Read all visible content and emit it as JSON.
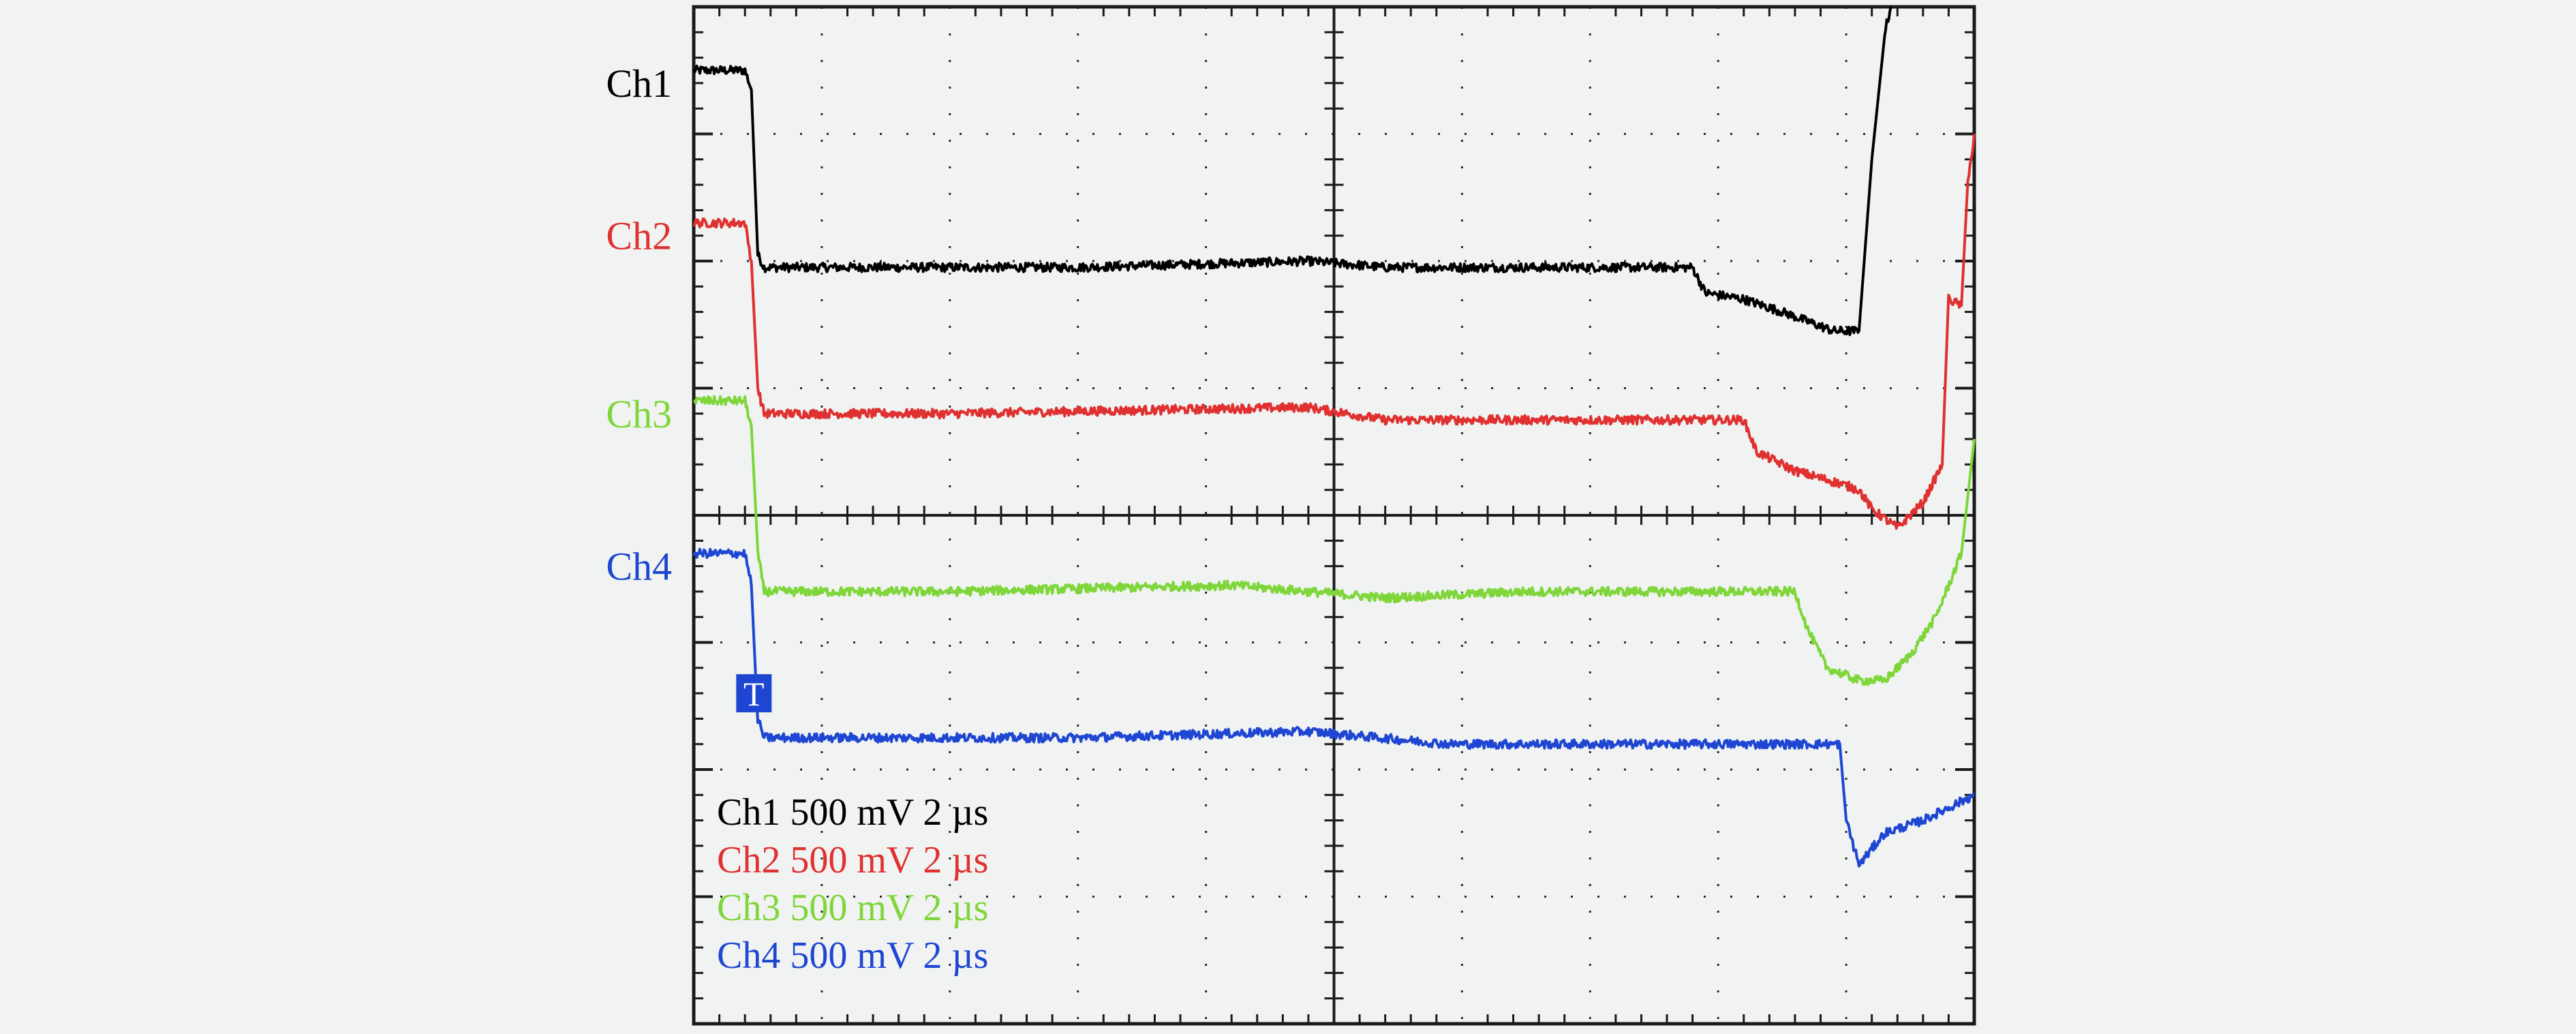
{
  "chart_data": {
    "type": "line",
    "grid": true,
    "grid_divisions": {
      "x": 10,
      "y": 8
    },
    "x_unit": "div",
    "y_unit": "div",
    "xlim": [
      0,
      10
    ],
    "ylim": [
      -4,
      4
    ],
    "series": [
      {
        "name": "Ch1",
        "color": "#000000",
        "points": [
          [
            0,
            3.5
          ],
          [
            0.4,
            3.5
          ],
          [
            0.45,
            3.35
          ],
          [
            0.5,
            2.05
          ],
          [
            0.55,
            1.95
          ],
          [
            1,
            1.95
          ],
          [
            3,
            1.95
          ],
          [
            4.8,
            2.0
          ],
          [
            5.4,
            1.95
          ],
          [
            6.5,
            1.95
          ],
          [
            7.8,
            1.95
          ],
          [
            7.9,
            1.75
          ],
          [
            8.2,
            1.7
          ],
          [
            8.5,
            1.6
          ],
          [
            8.9,
            1.45
          ],
          [
            9.1,
            1.45
          ],
          [
            9.2,
            2.8
          ],
          [
            9.3,
            3.8
          ],
          [
            9.35,
            4.0
          ]
        ]
      },
      {
        "name": "Ch2",
        "color": "#e03030",
        "points": [
          [
            0,
            2.3
          ],
          [
            0.4,
            2.3
          ],
          [
            0.45,
            2.0
          ],
          [
            0.5,
            1.0
          ],
          [
            0.55,
            0.8
          ],
          [
            1,
            0.8
          ],
          [
            2,
            0.8
          ],
          [
            4.8,
            0.85
          ],
          [
            5.4,
            0.75
          ],
          [
            6.5,
            0.75
          ],
          [
            8.2,
            0.75
          ],
          [
            8.3,
            0.5
          ],
          [
            8.6,
            0.35
          ],
          [
            8.95,
            0.25
          ],
          [
            9.1,
            0.2
          ],
          [
            9.2,
            0.05
          ],
          [
            9.4,
            -0.1
          ],
          [
            9.6,
            0.1
          ],
          [
            9.75,
            0.4
          ],
          [
            9.8,
            1.7
          ],
          [
            9.9,
            1.65
          ],
          [
            9.95,
            2.6
          ],
          [
            10,
            3.0
          ]
        ]
      },
      {
        "name": "Ch3",
        "color": "#7fd63a",
        "points": [
          [
            0,
            0.9
          ],
          [
            0.4,
            0.9
          ],
          [
            0.45,
            0.7
          ],
          [
            0.5,
            -0.3
          ],
          [
            0.55,
            -0.6
          ],
          [
            1,
            -0.6
          ],
          [
            2,
            -0.6
          ],
          [
            4.2,
            -0.55
          ],
          [
            5.4,
            -0.65
          ],
          [
            6.5,
            -0.6
          ],
          [
            8.6,
            -0.6
          ],
          [
            8.7,
            -0.9
          ],
          [
            8.85,
            -1.2
          ],
          [
            9.1,
            -1.3
          ],
          [
            9.3,
            -1.3
          ],
          [
            9.5,
            -1.1
          ],
          [
            9.7,
            -0.8
          ],
          [
            9.9,
            -0.3
          ],
          [
            10,
            0.6
          ]
        ]
      },
      {
        "name": "Ch4",
        "color": "#1e46d2",
        "points": [
          [
            0,
            -0.3
          ],
          [
            0.4,
            -0.3
          ],
          [
            0.45,
            -0.55
          ],
          [
            0.5,
            -1.6
          ],
          [
            0.55,
            -1.75
          ],
          [
            1,
            -1.75
          ],
          [
            3,
            -1.75
          ],
          [
            4.8,
            -1.7
          ],
          [
            5.9,
            -1.8
          ],
          [
            6.5,
            -1.8
          ],
          [
            8.95,
            -1.8
          ],
          [
            9.0,
            -2.4
          ],
          [
            9.1,
            -2.75
          ],
          [
            9.3,
            -2.5
          ],
          [
            9.6,
            -2.4
          ],
          [
            9.8,
            -2.3
          ],
          [
            10,
            -2.2
          ]
        ]
      }
    ],
    "channel_labels": [
      {
        "text": "Ch1",
        "color": "#000000",
        "y": 3.4
      },
      {
        "text": "Ch2",
        "color": "#e03030",
        "y": 2.2
      },
      {
        "text": "Ch3",
        "color": "#7fd63a",
        "y": 0.8
      },
      {
        "text": "Ch4",
        "color": "#1e46d2",
        "y": -0.4
      }
    ],
    "trigger_marker": {
      "text": "T",
      "color": "#1e46d2",
      "x": 0.47,
      "y": -1.4
    },
    "legend": {
      "placement": "bottom-left",
      "entries": [
        {
          "channel": "Ch1",
          "volts_per_div": "500 mV",
          "time_per_div": "2 µs",
          "color": "#000000"
        },
        {
          "channel": "Ch2",
          "volts_per_div": "500 mV",
          "time_per_div": "2 µs",
          "color": "#e03030"
        },
        {
          "channel": "Ch3",
          "volts_per_div": "500 mV",
          "time_per_div": "2 µs",
          "color": "#7fd63a"
        },
        {
          "channel": "Ch4",
          "volts_per_div": "500 mV",
          "time_per_div": "2 µs",
          "color": "#1e46d2"
        }
      ]
    }
  }
}
